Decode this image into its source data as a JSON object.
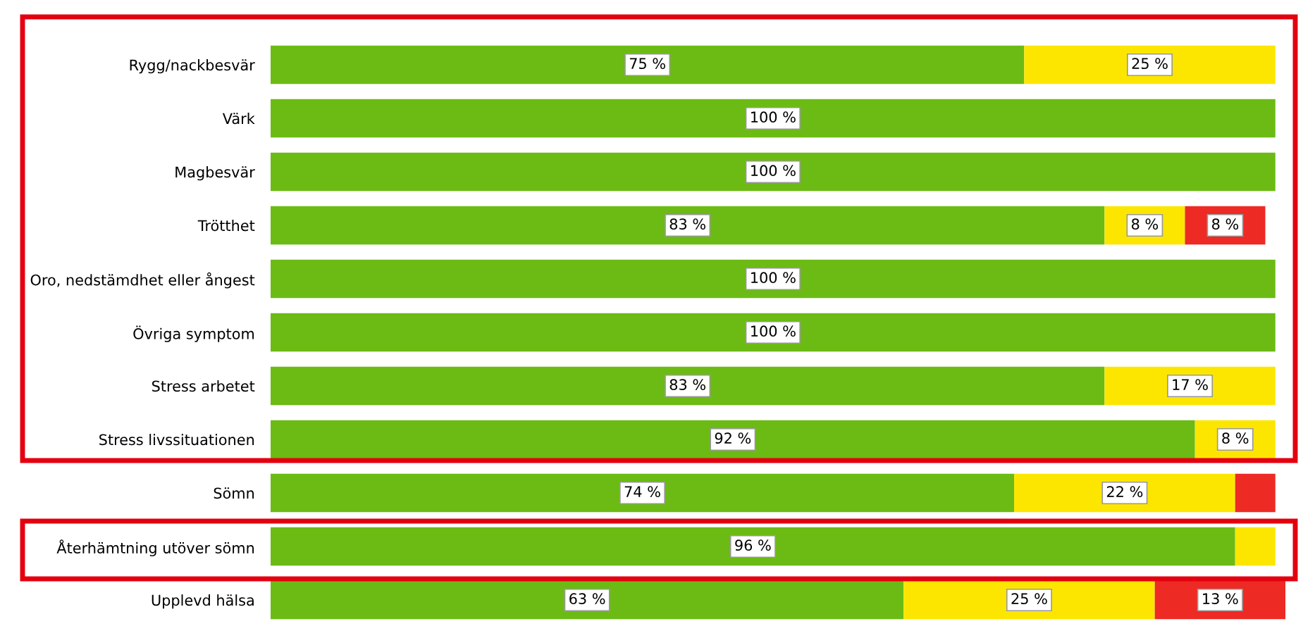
{
  "chart_data": {
    "type": "bar",
    "orientation": "horizontal",
    "stacked": true,
    "tick_labels": "y",
    "categories": [
      "Rygg/nackbesvär",
      "Värk",
      "Magbesvär",
      "Trötthet",
      "Oro, nedstämdhet eller ångest",
      "Övriga symptom",
      "Stress arbetet",
      "Stress livssituationen",
      "Sömn",
      "Återhämtning utöver sömn",
      "Upplevd hälsa"
    ],
    "series": [
      {
        "color": "#6bbb14",
        "values": [
          75,
          100,
          100,
          83,
          100,
          100,
          83,
          92,
          74,
          96,
          63
        ],
        "value_labels": [
          "75 %",
          "100 %",
          "100 %",
          "83 %",
          "100 %",
          "100 %",
          "83 %",
          "92 %",
          "74 %",
          "96 %",
          "63 %"
        ]
      },
      {
        "color": "#fce600",
        "values": [
          25,
          null,
          null,
          8,
          null,
          null,
          17,
          8,
          22,
          4,
          25
        ],
        "value_labels": [
          "25 %",
          null,
          null,
          "8 %",
          null,
          null,
          "17 %",
          "8 %",
          "22 %",
          null,
          "25 %"
        ]
      },
      {
        "color": "#ee2a24",
        "values": [
          null,
          null,
          null,
          8,
          null,
          null,
          null,
          null,
          4,
          null,
          13
        ],
        "value_labels": [
          null,
          null,
          null,
          "8 %",
          null,
          null,
          null,
          null,
          null,
          null,
          "13 %"
        ]
      }
    ]
  }
}
